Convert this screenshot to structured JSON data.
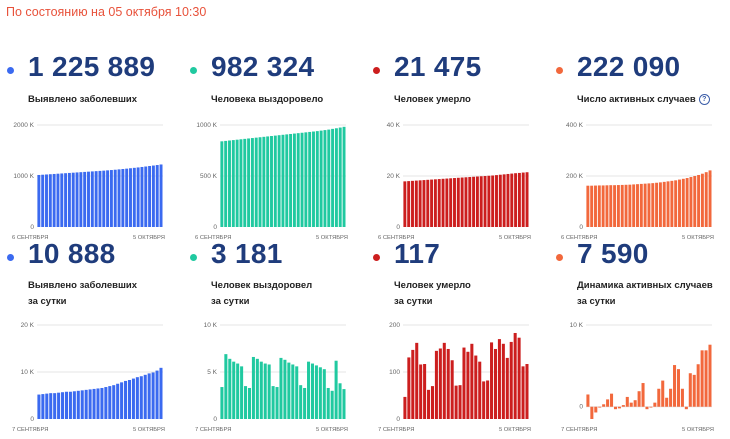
{
  "header": {
    "status_text": "По состоянию на 05 октября 10:30"
  },
  "cards": [
    {
      "value": "1 225 889",
      "label_lines": [
        "Выявлено заболевших"
      ],
      "color": "#3b6af0",
      "help_icon": false
    },
    {
      "value": "982 324",
      "label_lines": [
        "Человека выздоровело"
      ],
      "color": "#20c9a0",
      "help_icon": false
    },
    {
      "value": "21 475",
      "label_lines": [
        "Человек умерло"
      ],
      "color": "#cc1e1e",
      "help_icon": false
    },
    {
      "value": "222 090",
      "label_lines": [
        "Число активных случаев"
      ],
      "color": "#f2683c",
      "help_icon": true
    },
    {
      "value": "10 888",
      "label_lines": [
        "Выявлено заболевших",
        "за сутки"
      ],
      "color": "#3b6af0",
      "help_icon": false
    },
    {
      "value": "3 181",
      "label_lines": [
        "Человек выздоровел",
        "за сутки"
      ],
      "color": "#20c9a0",
      "help_icon": false
    },
    {
      "value": "117",
      "label_lines": [
        "Человек умерло",
        "за сутки"
      ],
      "color": "#cc1e1e",
      "help_icon": false
    },
    {
      "value": "7 590",
      "label_lines": [
        "Динамика активных случаев",
        "за сутки"
      ],
      "color": "#f2683c",
      "help_icon": false
    }
  ],
  "chart_data": [
    {
      "type": "bar",
      "color": "#3b6af0",
      "x_labels": [
        "6 СЕНТЯБРЯ",
        "5 ОКТЯБРЯ"
      ],
      "y_ticks": [
        {
          "value": 0,
          "label": "0"
        },
        {
          "value": 1000000,
          "label": "1000 K"
        },
        {
          "value": 2000000,
          "label": "2000 K"
        }
      ],
      "ylim": [
        0,
        2000000
      ],
      "values": [
        1020000,
        1025000,
        1030000,
        1035000,
        1040000,
        1045000,
        1050000,
        1055000,
        1060000,
        1065000,
        1070000,
        1075000,
        1080000,
        1085000,
        1090000,
        1095000,
        1100000,
        1105000,
        1111000,
        1117000,
        1123000,
        1130000,
        1137000,
        1144000,
        1152000,
        1160000,
        1168000,
        1177000,
        1186000,
        1196000,
        1205000,
        1215000,
        1226000
      ]
    },
    {
      "type": "bar",
      "color": "#20c9a0",
      "x_labels": [
        "6 СЕНТЯБРЯ",
        "5 ОКТЯБРЯ"
      ],
      "y_ticks": [
        {
          "value": 0,
          "label": "0"
        },
        {
          "value": 500000,
          "label": "500 K"
        },
        {
          "value": 1000000,
          "label": "1000 K"
        }
      ],
      "ylim": [
        0,
        1000000
      ],
      "values": [
        840000,
        844000,
        848000,
        852000,
        856000,
        860000,
        864000,
        868000,
        872000,
        876000,
        880000,
        884000,
        888000,
        892000,
        896000,
        900000,
        904000,
        908000,
        912000,
        916000,
        920000,
        924000,
        928000,
        932000,
        936000,
        940000,
        945000,
        950000,
        955000,
        962000,
        968000,
        975000,
        982000
      ]
    },
    {
      "type": "bar",
      "color": "#cc1e1e",
      "x_labels": [
        "6 СЕНТЯБРЯ",
        "5 ОКТЯБРЯ"
      ],
      "y_ticks": [
        {
          "value": 0,
          "label": "0"
        },
        {
          "value": 20000,
          "label": "20 K"
        },
        {
          "value": 40000,
          "label": "40 K"
        }
      ],
      "ylim": [
        0,
        40000
      ],
      "values": [
        17900,
        18000,
        18100,
        18200,
        18300,
        18400,
        18500,
        18600,
        18700,
        18800,
        18900,
        19000,
        19100,
        19200,
        19300,
        19400,
        19500,
        19600,
        19700,
        19800,
        19900,
        20000,
        20100,
        20200,
        20350,
        20500,
        20650,
        20800,
        20950,
        21100,
        21200,
        21350,
        21475
      ]
    },
    {
      "type": "bar",
      "color": "#f2683c",
      "x_labels": [
        "6 СЕНТЯБРЯ",
        "5 ОКТЯБРЯ"
      ],
      "y_ticks": [
        {
          "value": 0,
          "label": "0"
        },
        {
          "value": 200000,
          "label": "200 K"
        },
        {
          "value": 400000,
          "label": "400 K"
        }
      ],
      "ylim": [
        0,
        400000
      ],
      "values": [
        162000,
        162000,
        162500,
        163000,
        163000,
        163500,
        164000,
        164000,
        164500,
        165000,
        165500,
        166000,
        167000,
        168000,
        169000,
        170000,
        171000,
        172000,
        173500,
        175000,
        177000,
        179000,
        181000,
        183000,
        186000,
        189000,
        192000,
        196000,
        200000,
        204000,
        209000,
        215000,
        222000
      ]
    },
    {
      "type": "bar",
      "color": "#3b6af0",
      "x_labels": [
        "7 СЕНТЯБРЯ",
        "5 ОКТЯБРЯ"
      ],
      "y_ticks": [
        {
          "value": 0,
          "label": "0"
        },
        {
          "value": 10000,
          "label": "10 K"
        },
        {
          "value": 20000,
          "label": "20 K"
        }
      ],
      "ylim": [
        0,
        20000
      ],
      "values": [
        5200,
        5300,
        5400,
        5500,
        5500,
        5600,
        5700,
        5800,
        5800,
        5900,
        6000,
        6100,
        6200,
        6300,
        6400,
        6500,
        6600,
        6800,
        7000,
        7200,
        7500,
        7800,
        8100,
        8300,
        8600,
        8900,
        9100,
        9400,
        9700,
        9900,
        10300,
        10888
      ]
    },
    {
      "type": "bar",
      "color": "#20c9a0",
      "x_labels": [
        "7 СЕНТЯБРЯ",
        "5 ОКТЯБРЯ"
      ],
      "y_ticks": [
        {
          "value": 0,
          "label": "0"
        },
        {
          "value": 5000,
          "label": "5 K"
        },
        {
          "value": 10000,
          "label": "10 K"
        }
      ],
      "ylim": [
        0,
        10000
      ],
      "values": [
        3400,
        6900,
        6400,
        6100,
        5900,
        5600,
        3500,
        3300,
        6600,
        6400,
        6100,
        5900,
        5800,
        3500,
        3400,
        6500,
        6300,
        6000,
        5800,
        5600,
        3600,
        3300,
        6100,
        5900,
        5700,
        5500,
        5300,
        3300,
        3000,
        6200,
        3800,
        3181
      ]
    },
    {
      "type": "bar",
      "color": "#cc1e1e",
      "x_labels": [
        "7 СЕНТЯБРЯ",
        "5 ОКТЯБРЯ"
      ],
      "y_ticks": [
        {
          "value": 0,
          "label": "0"
        },
        {
          "value": 100,
          "label": "100"
        },
        {
          "value": 200,
          "label": "200"
        }
      ],
      "ylim": [
        0,
        200
      ],
      "values": [
        47,
        131,
        147,
        162,
        116,
        117,
        62,
        70,
        145,
        150,
        162,
        149,
        125,
        71,
        72,
        152,
        143,
        160,
        135,
        122,
        80,
        82,
        163,
        149,
        170,
        160,
        130,
        164,
        183,
        173,
        112,
        117
      ]
    },
    {
      "type": "bar",
      "color": "#f2683c",
      "x_labels": [
        "7 СЕНТЯБРЯ",
        "5 ОКТЯБРЯ"
      ],
      "y_ticks": [
        {
          "value": 0,
          "label": "0"
        },
        {
          "value": 10000,
          "label": "10 K"
        }
      ],
      "ylim": [
        -1500,
        10000
      ],
      "values": [
        1500,
        -1500,
        -700,
        -100,
        300,
        900,
        1600,
        -300,
        -200,
        200,
        1200,
        500,
        800,
        1900,
        2900,
        -300,
        -100,
        500,
        2200,
        3200,
        1100,
        2200,
        5100,
        4600,
        2200,
        -300,
        4100,
        3900,
        5200,
        6900,
        6900,
        7590
      ]
    }
  ]
}
